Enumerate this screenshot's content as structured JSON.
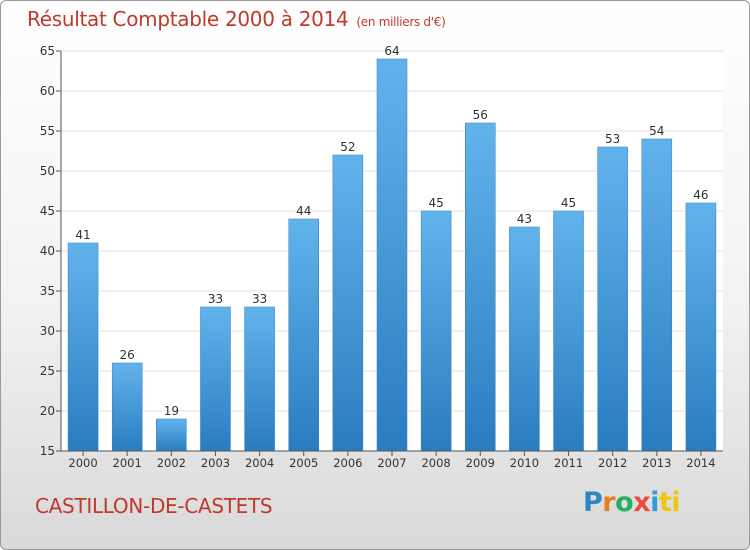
{
  "header": {
    "title": "Résultat Comptable 2000 à 2014",
    "unit": "(en milliers d'€)"
  },
  "footer": {
    "town": "CASTILLON-DE-CASTETS",
    "logo_letters": [
      "P",
      "r",
      "o",
      "x",
      "i",
      "ti"
    ]
  },
  "chart_data": {
    "type": "bar",
    "title": "Résultat Comptable 2000 à 2014",
    "subtitle": "(en milliers d'€)",
    "categories": [
      "2000",
      "2001",
      "2002",
      "2003",
      "2004",
      "2005",
      "2006",
      "2007",
      "2008",
      "2009",
      "2010",
      "2011",
      "2012",
      "2013",
      "2014"
    ],
    "values": [
      41,
      26,
      19,
      33,
      33,
      44,
      52,
      64,
      45,
      56,
      43,
      45,
      53,
      54,
      46
    ],
    "ylim": [
      15,
      65
    ],
    "yticks": [
      15,
      20,
      25,
      30,
      35,
      40,
      45,
      50,
      55,
      60,
      65
    ],
    "grid": true,
    "bar_color": "#4a9fdf"
  }
}
